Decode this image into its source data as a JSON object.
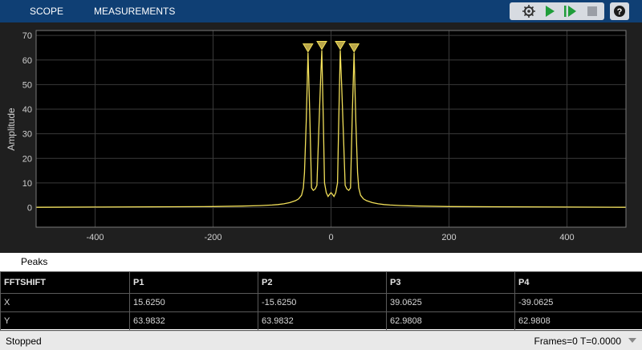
{
  "toolstrip": {
    "tabs": [
      {
        "label": "SCOPE"
      },
      {
        "label": "MEASUREMENTS"
      }
    ],
    "buttons": [
      "settings-icon",
      "run-icon",
      "step-forward-icon",
      "stop-icon",
      "help-icon"
    ],
    "bg_color": "#0f3f74"
  },
  "scope": {
    "ylabel": "Amplitude",
    "trace_color": "#f2e05a",
    "bg_color": "#000000",
    "grid_color": "#3a3a3a"
  },
  "chart_data": {
    "type": "line",
    "xlim": [
      -500,
      500
    ],
    "ylim": [
      -8,
      72
    ],
    "xticks": [
      -400,
      -200,
      0,
      200,
      400
    ],
    "yticks": [
      0,
      10,
      20,
      30,
      40,
      50,
      60,
      70
    ],
    "xlabel": "",
    "ylabel": "Amplitude",
    "grid": true,
    "x": [
      -500,
      -400,
      -300,
      -200,
      -150,
      -120,
      -100,
      -90,
      -80,
      -70,
      -60,
      -55,
      -50,
      -47,
      -45,
      -42,
      -39.0625,
      -36,
      -33,
      -30,
      -27,
      -24,
      -21,
      -18,
      -15.625,
      -13,
      -11,
      -8,
      -5,
      -2,
      0,
      2,
      5,
      8,
      11,
      13,
      15.625,
      18,
      21,
      24,
      27,
      30,
      33,
      36,
      39.0625,
      42,
      45,
      47,
      50,
      55,
      60,
      70,
      80,
      90,
      100,
      120,
      150,
      200,
      300,
      400,
      500
    ],
    "values": [
      0.1,
      0.2,
      0.3,
      0.4,
      0.6,
      0.8,
      1,
      1.2,
      1.5,
      2,
      2.8,
      3.5,
      5,
      8,
      14,
      35,
      62.98,
      38,
      8,
      7,
      7.5,
      9,
      30,
      50,
      63.98,
      35,
      10,
      6,
      4.5,
      5.5,
      6,
      5.5,
      4.5,
      6,
      10,
      35,
      63.98,
      50,
      30,
      9,
      7.5,
      7,
      8,
      38,
      62.98,
      35,
      14,
      8,
      5,
      3.5,
      2.8,
      2,
      1.5,
      1.2,
      1,
      0.8,
      0.6,
      0.4,
      0.3,
      0.2,
      0.1
    ],
    "markers": [
      {
        "x": -39.0625,
        "y": 62.9808
      },
      {
        "x": -15.625,
        "y": 63.9832
      },
      {
        "x": 15.625,
        "y": 63.9832
      },
      {
        "x": 39.0625,
        "y": 62.9808
      }
    ]
  },
  "peaks": {
    "title": "Peaks",
    "columns": [
      "FFTSHIFT",
      "P1",
      "P2",
      "P3",
      "P4"
    ],
    "rows": [
      [
        "X",
        "15.6250",
        "-15.6250",
        "39.0625",
        "-39.0625"
      ],
      [
        "Y",
        "63.9832",
        "63.9832",
        "62.9808",
        "62.9808"
      ]
    ]
  },
  "status": {
    "left": "Stopped",
    "right": "Frames=0  T=0.0000"
  }
}
